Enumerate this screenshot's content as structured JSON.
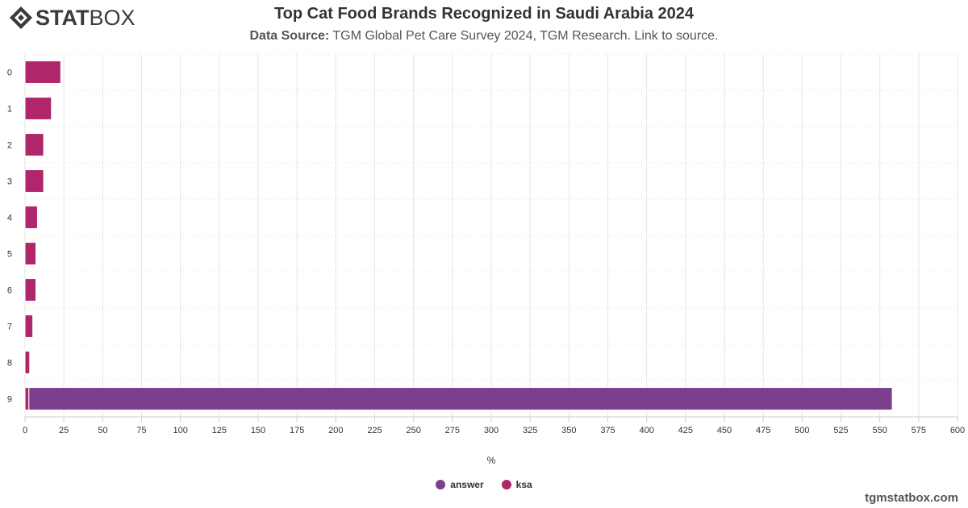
{
  "brand": {
    "logo_bold": "STAT",
    "logo_light": "BOX"
  },
  "header": {
    "title": "Top Cat Food Brands Recognized in Saudi Arabia 2024",
    "source_label": "Data Source:",
    "source_text": "TGM Global Pet Care Survey 2024, TGM Research. Link to source."
  },
  "footer": {
    "site": "tgmstatbox.com"
  },
  "colors": {
    "answer": "#7b3f8e",
    "ksa": "#b0266a",
    "grid": "#e6e6e6",
    "text": "#333333"
  },
  "chart_data": {
    "type": "bar",
    "orientation": "horizontal",
    "stacked": true,
    "title": "Top Cat Food Brands Recognized in Saudi Arabia 2024",
    "xlabel": "%",
    "ylabel": "",
    "xlim": [
      0,
      600
    ],
    "xticks": [
      0,
      25,
      50,
      75,
      100,
      125,
      150,
      175,
      200,
      225,
      250,
      275,
      300,
      325,
      350,
      375,
      400,
      425,
      450,
      475,
      500,
      525,
      550,
      575,
      600
    ],
    "grid": true,
    "legend_position": "bottom-center",
    "categories": [
      "0",
      "1",
      "2",
      "3",
      "4",
      "5",
      "6",
      "7",
      "8",
      "9"
    ],
    "series": [
      {
        "name": "ksa",
        "color": "#b0266a",
        "values": [
          23,
          17,
          12,
          12,
          8,
          7,
          7,
          5,
          3,
          2.5
        ]
      },
      {
        "name": "answer",
        "color": "#7b3f8e",
        "values": [
          0,
          0,
          0,
          0,
          0,
          0,
          0,
          0,
          0,
          555.5
        ]
      }
    ],
    "legend": [
      "answer",
      "ksa"
    ]
  }
}
